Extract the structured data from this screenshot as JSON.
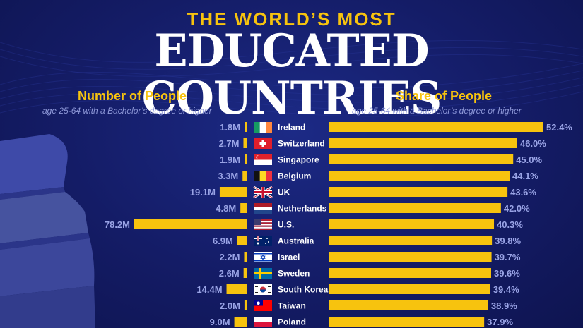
{
  "header": {
    "kicker": "THE WORLD’S MOST",
    "title": "EDUCATED COUNTRIES"
  },
  "left_panel": {
    "title": "Number of People",
    "subtitle": "age 25-64 with a Bachelor’s degree or higher"
  },
  "right_panel": {
    "title": "Share of People",
    "subtitle": "age 25-64 with a Bachelor’s degree or higher"
  },
  "colors": {
    "bar": "#f7c30e",
    "value_text": "#9aa4e6",
    "country_text": "#ffffff",
    "title": "#ffffff",
    "accent": "#f7c30e"
  },
  "chart_data": {
    "type": "bar",
    "categories": [
      "Ireland",
      "Switzerland",
      "Singapore",
      "Belgium",
      "UK",
      "Netherlands",
      "U.S.",
      "Australia",
      "Israel",
      "Sweden",
      "South Korea",
      "Taiwan",
      "Poland"
    ],
    "series": [
      {
        "name": "Number of People",
        "values": [
          1.8,
          2.7,
          1.9,
          3.3,
          19.1,
          4.8,
          78.2,
          6.9,
          2.2,
          2.6,
          14.4,
          2.0,
          9.0
        ],
        "labels": [
          "1.8M",
          "2.7M",
          "1.9M",
          "3.3M",
          "19.1M",
          "4.8M",
          "78.2M",
          "6.9M",
          "2.2M",
          "2.6M",
          "14.4M",
          "2.0M",
          "9.0M"
        ]
      },
      {
        "name": "Share of People",
        "values": [
          52.4,
          46.0,
          45.0,
          44.1,
          43.6,
          42.0,
          40.3,
          39.8,
          39.7,
          39.6,
          39.4,
          38.9,
          37.9
        ],
        "labels": [
          "52.4%",
          "46.0%",
          "45.0%",
          "44.1%",
          "43.6%",
          "42.0%",
          "40.3%",
          "39.8%",
          "39.7%",
          "39.6%",
          "39.4%",
          "38.9%",
          "37.9%"
        ]
      }
    ],
    "flags": [
      "ireland-flag-icon",
      "switzerland-flag-icon",
      "singapore-flag-icon",
      "belgium-flag-icon",
      "uk-flag-icon",
      "netherlands-flag-icon",
      "us-flag-icon",
      "australia-flag-icon",
      "israel-flag-icon",
      "sweden-flag-icon",
      "south-korea-flag-icon",
      "taiwan-flag-icon",
      "poland-flag-icon"
    ]
  }
}
